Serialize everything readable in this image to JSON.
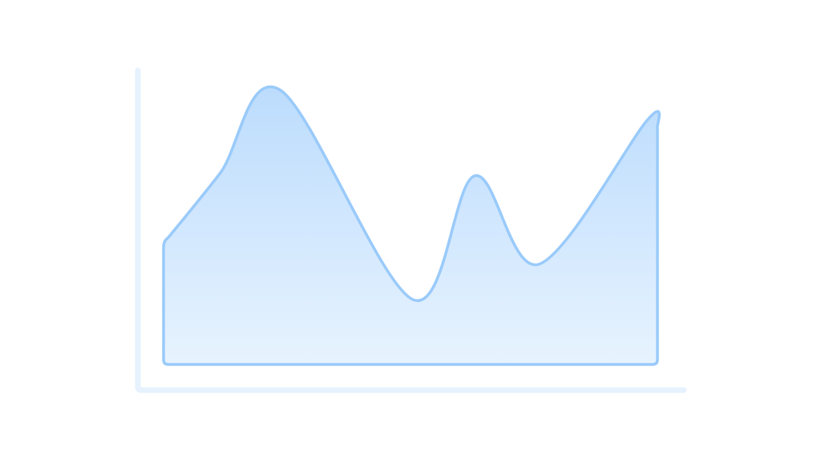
{
  "chart_data": {
    "type": "area",
    "title": "",
    "xlabel": "",
    "ylabel": "",
    "xlim": [
      0,
      100
    ],
    "ylim": [
      0,
      100
    ],
    "grid": false,
    "x": [
      0,
      11.5,
      23.7,
      50.5,
      63,
      76,
      98,
      100
    ],
    "values": [
      42,
      65,
      93,
      22,
      64,
      34,
      83,
      80
    ],
    "colors": {
      "axis": "#E6F2FE",
      "stroke": "#99CAFA",
      "fill_top": "#BCDCFD",
      "fill_bottom": "#E7F3FE"
    }
  }
}
